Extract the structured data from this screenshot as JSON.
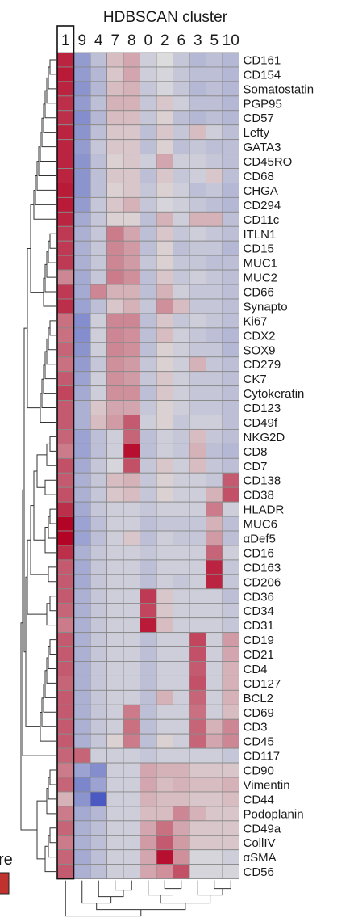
{
  "chart_data": {
    "type": "heatmap",
    "title": "HDBSCAN cluster",
    "legend_fragment": "re",
    "columns": [
      "1",
      "9",
      "4",
      "7",
      "8",
      "0",
      "2",
      "6",
      "3",
      "5",
      "10"
    ],
    "rows": [
      "CD161",
      "CD154",
      "Somatostatin",
      "PGP95",
      "CD57",
      "Lefty",
      "GATA3",
      "CD45RO",
      "CD68",
      "CHGA",
      "CD294",
      "CD11c",
      "ITLN1",
      "CD15",
      "MUC1",
      "MUC2",
      "CD66",
      "Synapto",
      "Ki67",
      "CDX2",
      "SOX9",
      "CD279",
      "CK7",
      "Cytokeratin",
      "CD123",
      "CD49f",
      "NKG2D",
      "CD8",
      "CD7",
      "CD138",
      "CD38",
      "HLADR",
      "MUC6",
      "αDef5",
      "CD16",
      "CD163",
      "CD206",
      "CD36",
      "CD34",
      "CD31",
      "CD19",
      "CD21",
      "CD4",
      "CD127",
      "BCL2",
      "CD69",
      "CD3",
      "CD45",
      "CD117",
      "CD90",
      "Vimentin",
      "CD44",
      "Podoplanin",
      "CD49a",
      "CollIV",
      "αSMA",
      "CD56"
    ],
    "values": [
      [
        0.85,
        -0.45,
        -0.2,
        0.15,
        0.25,
        -0.1,
        0.0,
        -0.15,
        -0.25,
        -0.2,
        -0.25
      ],
      [
        0.9,
        -0.45,
        -0.25,
        0.1,
        0.25,
        -0.1,
        -0.05,
        -0.15,
        -0.2,
        -0.2,
        -0.25
      ],
      [
        0.85,
        -0.5,
        -0.25,
        0.15,
        0.2,
        -0.15,
        -0.05,
        -0.15,
        -0.25,
        -0.2,
        -0.25
      ],
      [
        0.8,
        -0.45,
        -0.2,
        0.2,
        0.2,
        -0.15,
        0.1,
        -0.1,
        -0.2,
        -0.2,
        -0.25
      ],
      [
        0.8,
        -0.55,
        -0.25,
        0.15,
        0.15,
        -0.15,
        0.05,
        -0.2,
        -0.25,
        -0.2,
        -0.25
      ],
      [
        0.85,
        -0.5,
        -0.2,
        0.1,
        0.1,
        -0.2,
        0.1,
        -0.15,
        0.15,
        -0.1,
        -0.2
      ],
      [
        0.85,
        -0.45,
        -0.15,
        0.1,
        0.1,
        -0.2,
        0.05,
        -0.2,
        -0.15,
        -0.2,
        -0.2
      ],
      [
        0.85,
        -0.5,
        -0.2,
        0.05,
        0.1,
        -0.1,
        0.25,
        -0.1,
        -0.1,
        -0.15,
        -0.2
      ],
      [
        0.85,
        -0.5,
        -0.2,
        0.1,
        0.1,
        -0.2,
        0.1,
        -0.15,
        -0.1,
        0.1,
        -0.2
      ],
      [
        0.9,
        -0.5,
        -0.2,
        0.05,
        0.1,
        -0.15,
        0.05,
        -0.1,
        -0.2,
        -0.15,
        -0.25
      ],
      [
        0.9,
        -0.45,
        -0.15,
        0.1,
        0.2,
        -0.15,
        -0.05,
        -0.1,
        -0.15,
        -0.2,
        -0.25
      ],
      [
        0.85,
        -0.35,
        -0.15,
        0.05,
        0.05,
        -0.2,
        0.2,
        -0.1,
        0.2,
        0.2,
        -0.2
      ],
      [
        0.75,
        -0.3,
        -0.15,
        0.45,
        0.25,
        -0.2,
        0.1,
        -0.15,
        -0.1,
        -0.15,
        -0.2
      ],
      [
        0.75,
        -0.3,
        -0.15,
        0.4,
        0.3,
        -0.2,
        0.05,
        -0.2,
        -0.15,
        -0.15,
        -0.25
      ],
      [
        0.75,
        -0.3,
        -0.15,
        0.4,
        0.3,
        -0.15,
        0.05,
        -0.15,
        -0.15,
        -0.2,
        -0.2
      ],
      [
        0.4,
        -0.35,
        -0.15,
        0.45,
        0.35,
        -0.2,
        0.1,
        -0.15,
        -0.1,
        -0.15,
        -0.2
      ],
      [
        0.75,
        -0.35,
        0.4,
        0.2,
        0.2,
        -0.2,
        0.2,
        -0.1,
        -0.15,
        -0.15,
        -0.2
      ],
      [
        0.8,
        -0.4,
        -0.2,
        0.1,
        0.2,
        -0.15,
        0.35,
        0.15,
        -0.15,
        -0.15,
        -0.2
      ],
      [
        0.5,
        -0.55,
        -0.1,
        0.4,
        0.4,
        -0.2,
        0.1,
        -0.15,
        -0.1,
        -0.15,
        -0.2
      ],
      [
        0.5,
        -0.55,
        -0.1,
        0.4,
        0.35,
        -0.2,
        0.15,
        -0.1,
        -0.15,
        -0.2,
        -0.25
      ],
      [
        0.55,
        -0.5,
        -0.1,
        0.4,
        0.35,
        -0.2,
        0.05,
        -0.1,
        -0.15,
        -0.15,
        -0.25
      ],
      [
        0.5,
        -0.45,
        -0.15,
        0.35,
        0.3,
        -0.15,
        0.05,
        -0.1,
        0.2,
        -0.15,
        -0.2
      ],
      [
        0.6,
        -0.4,
        -0.1,
        0.35,
        0.3,
        -0.15,
        0.1,
        -0.1,
        -0.15,
        -0.15,
        -0.2
      ],
      [
        0.7,
        -0.35,
        -0.1,
        0.35,
        0.35,
        -0.2,
        0.1,
        -0.1,
        -0.15,
        -0.15,
        -0.2
      ],
      [
        0.6,
        -0.3,
        0.1,
        0.25,
        0.25,
        -0.15,
        0.05,
        -0.1,
        -0.15,
        -0.15,
        -0.2
      ],
      [
        0.6,
        -0.3,
        0.15,
        0.3,
        0.6,
        -0.1,
        0.05,
        -0.15,
        -0.1,
        -0.1,
        -0.2
      ],
      [
        0.55,
        -0.4,
        -0.2,
        -0.1,
        0.55,
        -0.2,
        -0.1,
        -0.15,
        0.15,
        -0.15,
        -0.2
      ],
      [
        0.45,
        -0.4,
        -0.2,
        -0.1,
        0.95,
        -0.2,
        -0.1,
        -0.15,
        0.2,
        -0.2,
        -0.25
      ],
      [
        0.65,
        -0.35,
        -0.15,
        -0.05,
        0.65,
        -0.15,
        0.1,
        -0.1,
        0.15,
        -0.15,
        -0.2
      ],
      [
        0.6,
        -0.3,
        -0.15,
        0.15,
        0.2,
        -0.15,
        0.05,
        -0.1,
        -0.1,
        -0.15,
        0.6
      ],
      [
        0.65,
        -0.3,
        -0.15,
        0.1,
        0.15,
        -0.15,
        0.05,
        -0.1,
        -0.1,
        0.2,
        0.65
      ],
      [
        0.8,
        -0.35,
        -0.15,
        -0.1,
        -0.1,
        -0.15,
        -0.1,
        -0.1,
        -0.1,
        0.45,
        -0.1
      ],
      [
        1.0,
        -0.4,
        -0.2,
        -0.1,
        -0.1,
        -0.2,
        -0.15,
        -0.15,
        -0.15,
        0.2,
        -0.2
      ],
      [
        1.0,
        -0.4,
        -0.2,
        -0.1,
        0.1,
        -0.2,
        -0.1,
        -0.15,
        -0.15,
        0.3,
        -0.2
      ],
      [
        0.8,
        -0.3,
        -0.15,
        -0.1,
        -0.1,
        -0.15,
        -0.1,
        -0.1,
        -0.1,
        0.55,
        -0.1
      ],
      [
        0.6,
        -0.35,
        -0.15,
        -0.1,
        -0.1,
        -0.2,
        -0.1,
        -0.1,
        -0.1,
        0.85,
        -0.15
      ],
      [
        0.6,
        -0.35,
        -0.15,
        -0.1,
        -0.1,
        -0.2,
        -0.1,
        -0.15,
        -0.1,
        0.85,
        -0.15
      ],
      [
        0.6,
        -0.3,
        -0.15,
        -0.1,
        -0.1,
        0.75,
        0.1,
        -0.1,
        -0.1,
        -0.1,
        -0.2
      ],
      [
        0.55,
        -0.3,
        -0.15,
        -0.1,
        -0.1,
        0.7,
        0.1,
        -0.1,
        -0.1,
        -0.1,
        -0.15
      ],
      [
        0.45,
        -0.3,
        -0.15,
        -0.1,
        -0.1,
        0.9,
        0.15,
        -0.1,
        -0.1,
        -0.1,
        -0.15
      ],
      [
        0.6,
        -0.3,
        -0.15,
        -0.1,
        -0.1,
        -0.2,
        -0.1,
        -0.1,
        0.7,
        -0.1,
        0.3
      ],
      [
        0.6,
        -0.3,
        -0.15,
        -0.1,
        -0.1,
        -0.2,
        -0.1,
        -0.1,
        0.65,
        -0.1,
        0.25
      ],
      [
        0.6,
        -0.3,
        -0.15,
        -0.1,
        -0.1,
        -0.2,
        -0.1,
        -0.1,
        0.6,
        -0.1,
        0.2
      ],
      [
        0.55,
        -0.3,
        -0.15,
        -0.1,
        -0.1,
        -0.2,
        -0.1,
        -0.1,
        0.65,
        -0.1,
        0.2
      ],
      [
        0.6,
        -0.3,
        -0.15,
        -0.1,
        -0.1,
        -0.2,
        0.2,
        -0.1,
        0.55,
        -0.1,
        0.2
      ],
      [
        0.6,
        -0.3,
        -0.15,
        -0.1,
        0.45,
        -0.2,
        -0.1,
        -0.1,
        0.5,
        -0.1,
        0.15
      ],
      [
        0.6,
        -0.3,
        -0.15,
        -0.1,
        0.5,
        -0.2,
        -0.1,
        -0.1,
        0.55,
        0.2,
        0.4
      ],
      [
        0.6,
        -0.3,
        -0.15,
        0.05,
        0.45,
        -0.2,
        0.05,
        -0.1,
        0.55,
        0.25,
        0.4
      ],
      [
        0.55,
        0.55,
        -0.1,
        -0.1,
        -0.1,
        -0.15,
        -0.1,
        -0.1,
        -0.1,
        -0.1,
        -0.15
      ],
      [
        0.45,
        -0.4,
        -0.55,
        -0.1,
        -0.1,
        0.25,
        0.2,
        0.2,
        0.1,
        0.1,
        0.1
      ],
      [
        0.55,
        -0.6,
        -0.4,
        -0.1,
        -0.1,
        0.25,
        0.15,
        0.2,
        0.15,
        0.15,
        0.2
      ],
      [
        0.2,
        -0.5,
        -0.9,
        -0.1,
        -0.1,
        0.2,
        0.15,
        0.15,
        0.1,
        0.1,
        0.15
      ],
      [
        0.45,
        -0.35,
        -0.25,
        -0.1,
        -0.1,
        0.15,
        0.15,
        0.4,
        0.2,
        0.1,
        0.1
      ],
      [
        0.55,
        -0.3,
        -0.2,
        -0.1,
        -0.1,
        0.25,
        0.5,
        0.25,
        0.1,
        0.1,
        0.1
      ],
      [
        0.45,
        -0.3,
        -0.2,
        -0.1,
        -0.1,
        0.3,
        0.6,
        0.3,
        0.1,
        0.1,
        0.1
      ],
      [
        0.55,
        -0.35,
        -0.2,
        -0.1,
        -0.1,
        0.25,
        0.95,
        0.35,
        -0.05,
        -0.05,
        -0.1
      ],
      [
        0.6,
        -0.3,
        -0.2,
        -0.1,
        -0.1,
        0.25,
        0.35,
        0.65,
        -0.05,
        -0.05,
        -0.05
      ]
    ],
    "value_range": [
      -1,
      1
    ],
    "colormap": [
      "#3b4cc0",
      "#dddcdc",
      "#b40426"
    ],
    "highlight_column": "1"
  }
}
